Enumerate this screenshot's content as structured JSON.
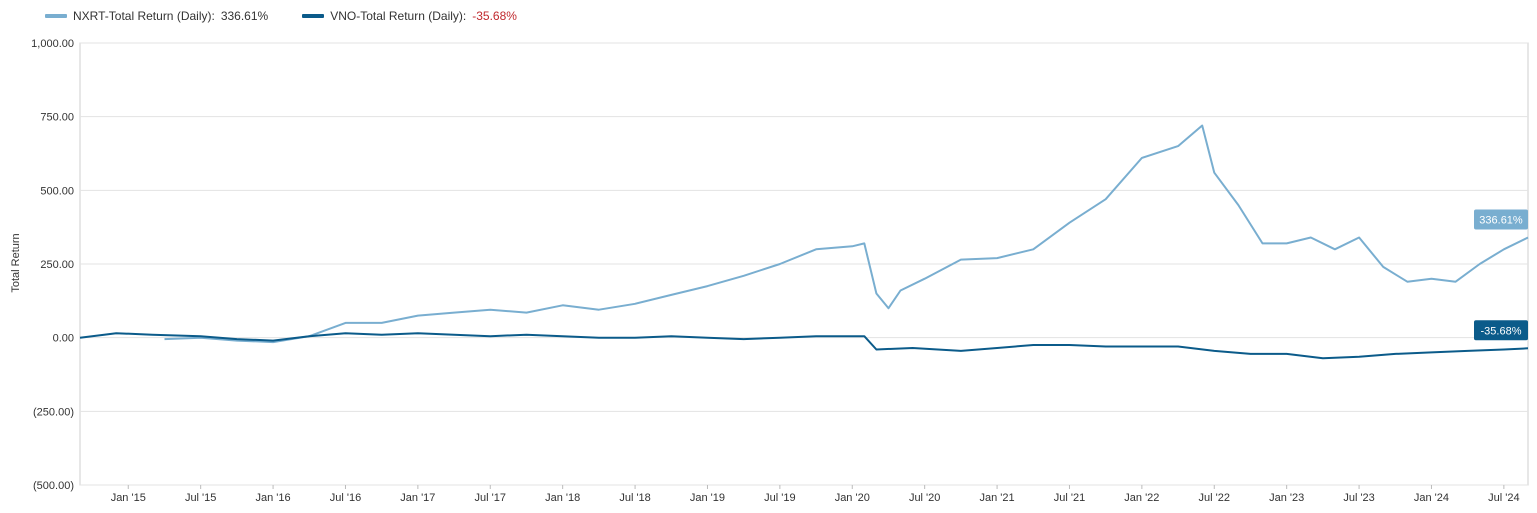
{
  "legend": {
    "nxrt_label": "NXRT-Total Return (Daily):",
    "nxrt_value": "336.61%",
    "vno_label": "VNO-Total Return (Daily):",
    "vno_value": "-35.68%"
  },
  "colors": {
    "nxrt": "#79aed0",
    "vno": "#0b5b8a",
    "negative": "#c0282d",
    "grid": "#e3e3e3"
  },
  "chart_data": {
    "type": "line",
    "ylabel": "Total Return",
    "ylim": [
      -500,
      1000
    ],
    "y_ticks": [
      1000,
      750,
      500,
      250,
      0,
      -250,
      -500
    ],
    "y_tick_labels": [
      "1,000.00",
      "750.00",
      "500.00",
      "250.00",
      "0.00",
      "(250.00)",
      "(500.00)"
    ],
    "x_ticks": [
      "2015-01",
      "2015-07",
      "2016-01",
      "2016-07",
      "2017-01",
      "2017-07",
      "2018-01",
      "2018-07",
      "2019-01",
      "2019-07",
      "2020-01",
      "2020-07",
      "2021-01",
      "2021-07",
      "2022-01",
      "2022-07",
      "2023-01",
      "2023-07",
      "2024-01",
      "2024-07"
    ],
    "x_tick_labels": [
      "Jan '15",
      "Jul '15",
      "Jan '16",
      "Jul '16",
      "Jan '17",
      "Jul '17",
      "Jan '18",
      "Jul '18",
      "Jan '19",
      "Jul '19",
      "Jan '20",
      "Jul '20",
      "Jan '21",
      "Jul '21",
      "Jan '22",
      "Jul '22",
      "Jan '23",
      "Jul '23",
      "Jan '24",
      "Jul '24"
    ],
    "xlim": [
      "2014-09",
      "2024-09"
    ],
    "series": [
      {
        "name": "NXRT-Total Return (Daily)",
        "end_label": "336.61%",
        "points": [
          [
            "2015-04",
            -5
          ],
          [
            "2015-07",
            0
          ],
          [
            "2015-10",
            -10
          ],
          [
            "2016-01",
            -15
          ],
          [
            "2016-04",
            5
          ],
          [
            "2016-07",
            50
          ],
          [
            "2016-10",
            50
          ],
          [
            "2017-01",
            75
          ],
          [
            "2017-04",
            85
          ],
          [
            "2017-07",
            95
          ],
          [
            "2017-10",
            85
          ],
          [
            "2018-01",
            110
          ],
          [
            "2018-04",
            95
          ],
          [
            "2018-07",
            115
          ],
          [
            "2018-10",
            145
          ],
          [
            "2019-01",
            175
          ],
          [
            "2019-04",
            210
          ],
          [
            "2019-07",
            250
          ],
          [
            "2019-10",
            300
          ],
          [
            "2020-01",
            310
          ],
          [
            "2020-02",
            320
          ],
          [
            "2020-03",
            150
          ],
          [
            "2020-04",
            100
          ],
          [
            "2020-05",
            160
          ],
          [
            "2020-07",
            200
          ],
          [
            "2020-10",
            265
          ],
          [
            "2021-01",
            270
          ],
          [
            "2021-04",
            300
          ],
          [
            "2021-07",
            390
          ],
          [
            "2021-10",
            470
          ],
          [
            "2022-01",
            610
          ],
          [
            "2022-04",
            650
          ],
          [
            "2022-06",
            720
          ],
          [
            "2022-07",
            560
          ],
          [
            "2022-09",
            450
          ],
          [
            "2022-11",
            320
          ],
          [
            "2023-01",
            320
          ],
          [
            "2023-03",
            340
          ],
          [
            "2023-05",
            300
          ],
          [
            "2023-07",
            340
          ],
          [
            "2023-09",
            240
          ],
          [
            "2023-11",
            190
          ],
          [
            "2024-01",
            200
          ],
          [
            "2024-03",
            190
          ],
          [
            "2024-05",
            250
          ],
          [
            "2024-07",
            300
          ],
          [
            "2024-09",
            340
          ]
        ]
      },
      {
        "name": "VNO-Total Return (Daily)",
        "end_label": "-35.68%",
        "points": [
          [
            "2014-09",
            0
          ],
          [
            "2014-12",
            15
          ],
          [
            "2015-03",
            10
          ],
          [
            "2015-07",
            5
          ],
          [
            "2015-10",
            -5
          ],
          [
            "2016-01",
            -10
          ],
          [
            "2016-04",
            5
          ],
          [
            "2016-07",
            15
          ],
          [
            "2016-10",
            10
          ],
          [
            "2017-01",
            15
          ],
          [
            "2017-04",
            10
          ],
          [
            "2017-07",
            5
          ],
          [
            "2017-10",
            10
          ],
          [
            "2018-01",
            5
          ],
          [
            "2018-04",
            0
          ],
          [
            "2018-07",
            0
          ],
          [
            "2018-10",
            5
          ],
          [
            "2019-01",
            0
          ],
          [
            "2019-04",
            -5
          ],
          [
            "2019-07",
            0
          ],
          [
            "2019-10",
            5
          ],
          [
            "2020-01",
            5
          ],
          [
            "2020-02",
            5
          ],
          [
            "2020-03",
            -40
          ],
          [
            "2020-06",
            -35
          ],
          [
            "2020-10",
            -45
          ],
          [
            "2021-01",
            -35
          ],
          [
            "2021-04",
            -25
          ],
          [
            "2021-07",
            -25
          ],
          [
            "2021-10",
            -30
          ],
          [
            "2022-01",
            -30
          ],
          [
            "2022-04",
            -30
          ],
          [
            "2022-07",
            -45
          ],
          [
            "2022-10",
            -55
          ],
          [
            "2023-01",
            -55
          ],
          [
            "2023-04",
            -70
          ],
          [
            "2023-07",
            -65
          ],
          [
            "2023-10",
            -55
          ],
          [
            "2024-01",
            -50
          ],
          [
            "2024-04",
            -45
          ],
          [
            "2024-07",
            -40
          ],
          [
            "2024-09",
            -36
          ]
        ]
      }
    ]
  }
}
